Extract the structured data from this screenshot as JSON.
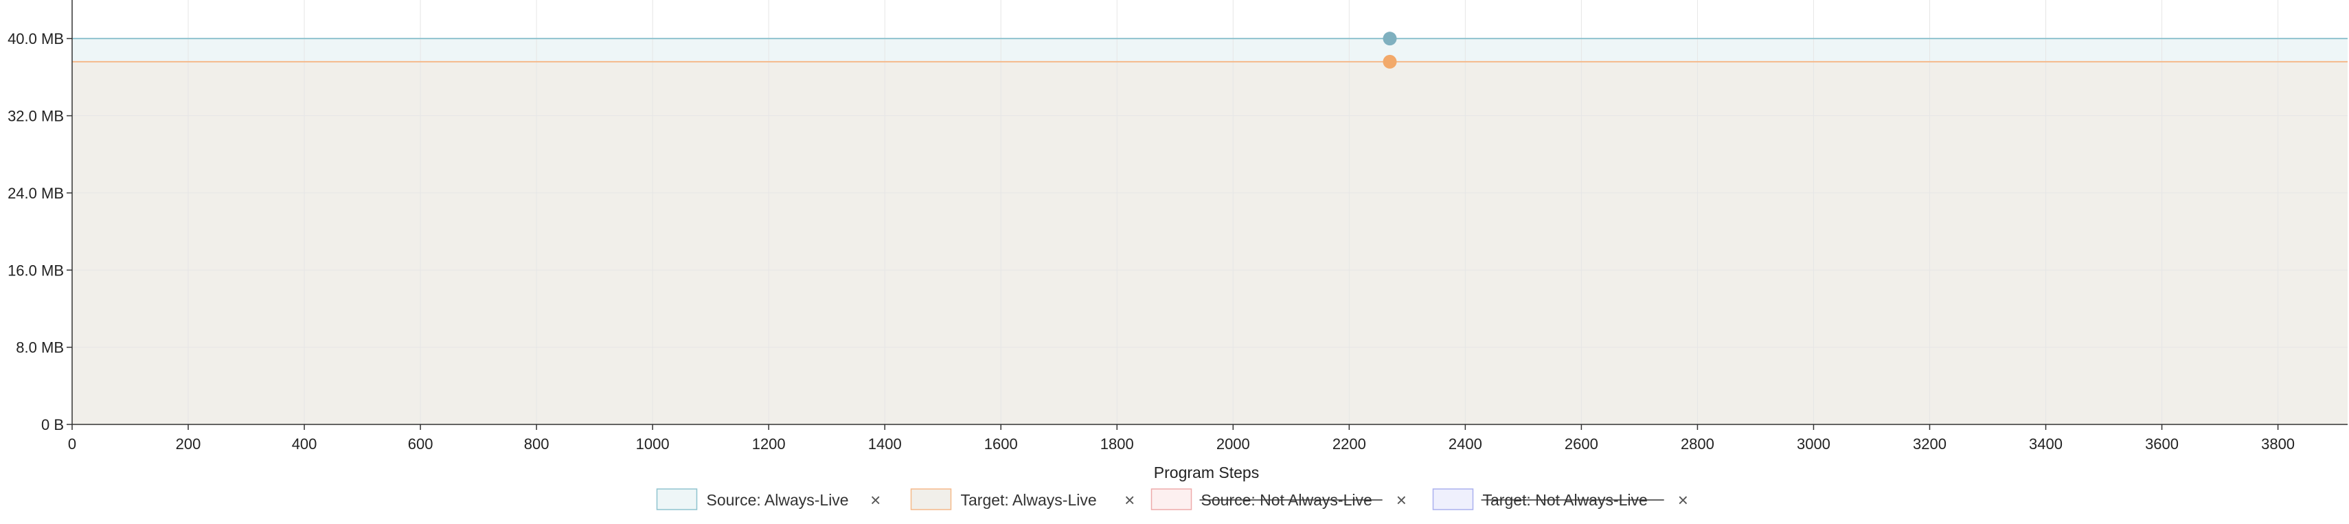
{
  "chart_data": {
    "type": "area",
    "xlabel": "Program Steps",
    "ylabel": "",
    "xlim": [
      0,
      3920
    ],
    "ylim": [
      0,
      44
    ],
    "x_ticks": [
      0,
      200,
      400,
      600,
      800,
      1000,
      1200,
      1400,
      1600,
      1800,
      2000,
      2200,
      2400,
      2600,
      2800,
      3000,
      3200,
      3400,
      3600,
      3800
    ],
    "y_ticks": [
      0,
      8,
      16,
      24,
      32,
      40
    ],
    "y_tick_labels": [
      "0 B",
      "8.0 MB",
      "16.0 MB",
      "24.0 MB",
      "32.0 MB",
      "40.0 MB"
    ],
    "grid": true,
    "legend_position": "bottom-center",
    "series": [
      {
        "name": "Source: Always-Live",
        "enabled": true,
        "color": "#8fc3cf",
        "fill": "#eef6f7",
        "x": [
          0,
          3920
        ],
        "values": [
          40.0,
          40.0
        ],
        "highlight": {
          "x": 2270,
          "y": 40.0
        }
      },
      {
        "name": "Target: Always-Live",
        "enabled": true,
        "color": "#f5b98a",
        "fill": "#f1efea",
        "x": [
          0,
          3920
        ],
        "values": [
          37.6,
          37.6
        ],
        "highlight": {
          "x": 2270,
          "y": 37.6
        }
      },
      {
        "name": "Source: Not Always-Live",
        "enabled": false,
        "color": "#eeaaaa",
        "fill": "#fdf0f0"
      },
      {
        "name": "Target: Not Always-Live",
        "enabled": false,
        "color": "#aab0ee",
        "fill": "#eff0fd"
      }
    ],
    "highlight_colors": {
      "source": "#7fb0bf",
      "target": "#f2a96a"
    },
    "legend_close_glyph": "×"
  }
}
